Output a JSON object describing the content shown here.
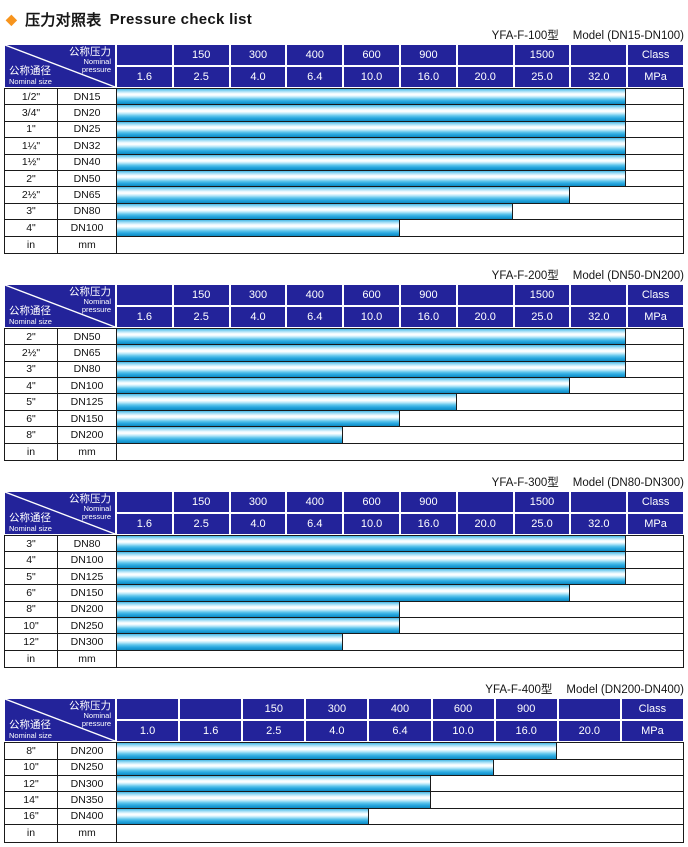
{
  "page_title": {
    "diamond": "◆",
    "zh": "压力对照表",
    "en": "Pressure check list"
  },
  "colors": {
    "header_navy": "#23239a",
    "bar_cyan": "#29a8e0",
    "diamond_orange": "#f7941d",
    "border_dark": "#1a1a1a"
  },
  "header_labels": {
    "pressure_zh": "公称压力",
    "pressure_en_line1": "Nominal",
    "pressure_en_line2": "pressure",
    "size_zh": "公称通径",
    "size_en": "Nominal size"
  },
  "units_row": {
    "inch": "in",
    "mm": "mm"
  },
  "tables": [
    {
      "model": "YFA-F-100型",
      "range": "Model (DN15-DN100)",
      "class_row": [
        "",
        "150",
        "300",
        "400",
        "600",
        "900",
        "",
        "1500",
        "",
        "Class"
      ],
      "mpa_row": [
        "1.6",
        "2.5",
        "4.0",
        "6.4",
        "10.0",
        "16.0",
        "20.0",
        "25.0",
        "32.0",
        "MPa"
      ],
      "rows": [
        {
          "inch": "1/2\"",
          "dn": "DN15",
          "bar_cols": 9,
          "max_mpa": "32.0"
        },
        {
          "inch": "3/4\"",
          "dn": "DN20",
          "bar_cols": 9,
          "max_mpa": "32.0"
        },
        {
          "inch": "1\"",
          "dn": "DN25",
          "bar_cols": 9,
          "max_mpa": "32.0"
        },
        {
          "inch": "1¼\"",
          "dn": "DN32",
          "bar_cols": 9,
          "max_mpa": "32.0"
        },
        {
          "inch": "1½\"",
          "dn": "DN40",
          "bar_cols": 9,
          "max_mpa": "32.0"
        },
        {
          "inch": "2\"",
          "dn": "DN50",
          "bar_cols": 9,
          "max_mpa": "32.0"
        },
        {
          "inch": "2½\"",
          "dn": "DN65",
          "bar_cols": 8,
          "max_mpa": "25.0"
        },
        {
          "inch": "3\"",
          "dn": "DN80",
          "bar_cols": 7,
          "max_mpa": "20.0"
        },
        {
          "inch": "4\"",
          "dn": "DN100",
          "bar_cols": 5,
          "max_mpa": "10.0"
        }
      ]
    },
    {
      "model": "YFA-F-200型",
      "range": "Model (DN50-DN200)",
      "class_row": [
        "",
        "150",
        "300",
        "400",
        "600",
        "900",
        "",
        "1500",
        "",
        "Class"
      ],
      "mpa_row": [
        "1.6",
        "2.5",
        "4.0",
        "6.4",
        "10.0",
        "16.0",
        "20.0",
        "25.0",
        "32.0",
        "MPa"
      ],
      "rows": [
        {
          "inch": "2\"",
          "dn": "DN50",
          "bar_cols": 9,
          "max_mpa": "32.0"
        },
        {
          "inch": "2½\"",
          "dn": "DN65",
          "bar_cols": 9,
          "max_mpa": "32.0"
        },
        {
          "inch": "3\"",
          "dn": "DN80",
          "bar_cols": 9,
          "max_mpa": "32.0"
        },
        {
          "inch": "4\"",
          "dn": "DN100",
          "bar_cols": 8,
          "max_mpa": "25.0"
        },
        {
          "inch": "5\"",
          "dn": "DN125",
          "bar_cols": 6,
          "max_mpa": "16.0"
        },
        {
          "inch": "6\"",
          "dn": "DN150",
          "bar_cols": 5,
          "max_mpa": "10.0"
        },
        {
          "inch": "8\"",
          "dn": "DN200",
          "bar_cols": 4,
          "max_mpa": "6.4"
        }
      ]
    },
    {
      "model": "YFA-F-300型",
      "range": "Model (DN80-DN300)",
      "class_row": [
        "",
        "150",
        "300",
        "400",
        "600",
        "900",
        "",
        "1500",
        "",
        "Class"
      ],
      "mpa_row": [
        "1.6",
        "2.5",
        "4.0",
        "6.4",
        "10.0",
        "16.0",
        "20.0",
        "25.0",
        "32.0",
        "MPa"
      ],
      "rows": [
        {
          "inch": "3\"",
          "dn": "DN80",
          "bar_cols": 9,
          "max_mpa": "32.0"
        },
        {
          "inch": "4\"",
          "dn": "DN100",
          "bar_cols": 9,
          "max_mpa": "32.0"
        },
        {
          "inch": "5\"",
          "dn": "DN125",
          "bar_cols": 9,
          "max_mpa": "32.0"
        },
        {
          "inch": "6\"",
          "dn": "DN150",
          "bar_cols": 8,
          "max_mpa": "25.0"
        },
        {
          "inch": "8\"",
          "dn": "DN200",
          "bar_cols": 5,
          "max_mpa": "10.0"
        },
        {
          "inch": "10\"",
          "dn": "DN250",
          "bar_cols": 5,
          "max_mpa": "10.0"
        },
        {
          "inch": "12\"",
          "dn": "DN300",
          "bar_cols": 4,
          "max_mpa": "6.4"
        }
      ]
    },
    {
      "model": "YFA-F-400型",
      "range": "Model (DN200-DN400)",
      "class_row": [
        "",
        "",
        "150",
        "300",
        "400",
        "600",
        "900",
        "",
        "Class"
      ],
      "mpa_row": [
        "1.0",
        "1.6",
        "2.5",
        "4.0",
        "6.4",
        "10.0",
        "16.0",
        "20.0",
        "MPa"
      ],
      "rows": [
        {
          "inch": "8\"",
          "dn": "DN200",
          "bar_cols": 7,
          "max_mpa": "16.0"
        },
        {
          "inch": "10\"",
          "dn": "DN250",
          "bar_cols": 6,
          "max_mpa": "10.0"
        },
        {
          "inch": "12\"",
          "dn": "DN300",
          "bar_cols": 5,
          "max_mpa": "6.4"
        },
        {
          "inch": "14\"",
          "dn": "DN350",
          "bar_cols": 5,
          "max_mpa": "6.4"
        },
        {
          "inch": "16\"",
          "dn": "DN400",
          "bar_cols": 4,
          "max_mpa": "4.0"
        }
      ]
    }
  ]
}
